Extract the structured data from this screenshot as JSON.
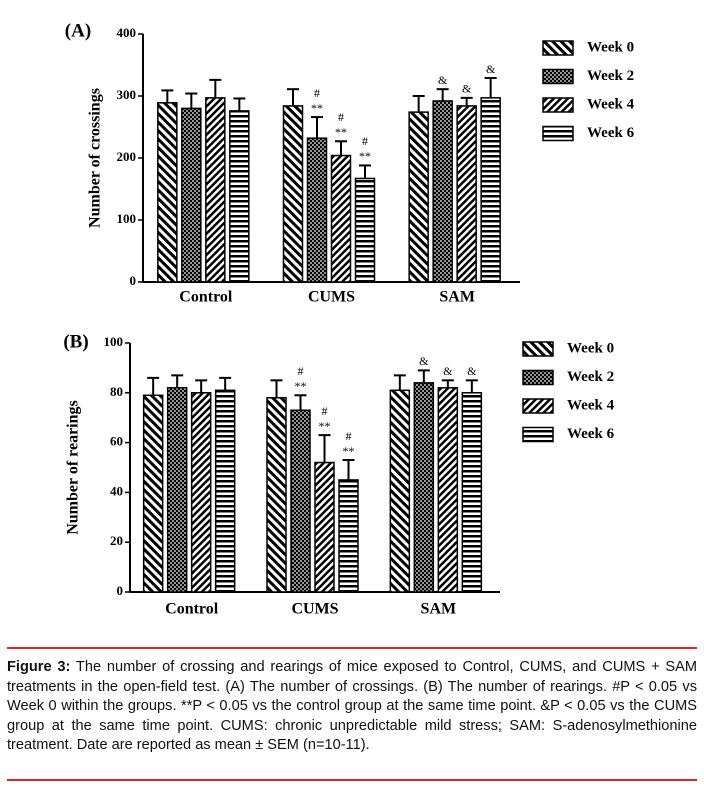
{
  "chart_data": [
    {
      "type": "bar",
      "title": "(A)",
      "y_label": "Number of crossings",
      "categories": [
        "Control",
        "CUMS",
        "SAM"
      ],
      "ylim": [
        0,
        400
      ],
      "yticks": [
        0,
        100,
        200,
        300,
        400
      ],
      "series": [
        {
          "name": "Week 0",
          "color": "#000000",
          "values": [
            289,
            284,
            274
          ],
          "errors": [
            20,
            27,
            26
          ],
          "annotations": [
            null,
            null,
            null
          ]
        },
        {
          "name": "Week 2",
          "color": "#000000",
          "values": [
            280,
            232,
            292
          ],
          "errors": [
            24,
            34,
            19
          ],
          "annotations": [
            null,
            [
              "#",
              "**"
            ],
            [
              "&"
            ]
          ]
        },
        {
          "name": "Week 4",
          "color": "#000000",
          "values": [
            297,
            204,
            284
          ],
          "errors": [
            29,
            23,
            13
          ],
          "annotations": [
            null,
            [
              "#",
              "**"
            ],
            [
              "&"
            ]
          ]
        },
        {
          "name": "Week 6",
          "color": "#000000",
          "values": [
            276,
            167,
            297
          ],
          "errors": [
            20,
            21,
            32
          ],
          "annotations": [
            null,
            [
              "#",
              "**"
            ],
            [
              "&"
            ]
          ]
        }
      ]
    },
    {
      "type": "bar",
      "title": "(B)",
      "y_label": "Number of rearings",
      "categories": [
        "Control",
        "CUMS",
        "SAM"
      ],
      "ylim": [
        0,
        100
      ],
      "yticks": [
        0,
        20,
        40,
        60,
        80,
        100
      ],
      "series": [
        {
          "name": "Week 0",
          "color": "#000000",
          "values": [
            79,
            78,
            81
          ],
          "errors": [
            7,
            7,
            6
          ],
          "annotations": [
            null,
            null,
            null
          ]
        },
        {
          "name": "Week 2",
          "color": "#000000",
          "values": [
            82,
            73,
            84
          ],
          "errors": [
            5,
            6,
            5
          ],
          "annotations": [
            null,
            [
              "#",
              "**"
            ],
            [
              "&"
            ]
          ]
        },
        {
          "name": "Week 4",
          "color": "#000000",
          "values": [
            80,
            52,
            82
          ],
          "errors": [
            5,
            11,
            3
          ],
          "annotations": [
            null,
            [
              "#",
              "**"
            ],
            [
              "&"
            ]
          ]
        },
        {
          "name": "Week 6",
          "color": "#000000",
          "values": [
            81,
            45,
            80
          ],
          "errors": [
            5,
            8,
            5
          ],
          "annotations": [
            null,
            [
              "#",
              "**"
            ],
            [
              "&"
            ]
          ]
        }
      ]
    }
  ],
  "caption": {
    "label": "Figure 3:",
    "text": "The number of crossing and rearings of mice exposed to Control, CUMS, and CUMS + SAM treatments in the open-field test. (A) The number of crossings. (B) The number of rearings. #P < 0.05 vs Week 0 within the groups. **P < 0.05 vs the control group at the same time point. &P < 0.05 vs the CUMS group at the same time point. CUMS: chronic unpredictable mild stress; SAM: S-adenosylmethionine treatment. Date are reported as mean ± SEM (n=10-11)."
  }
}
